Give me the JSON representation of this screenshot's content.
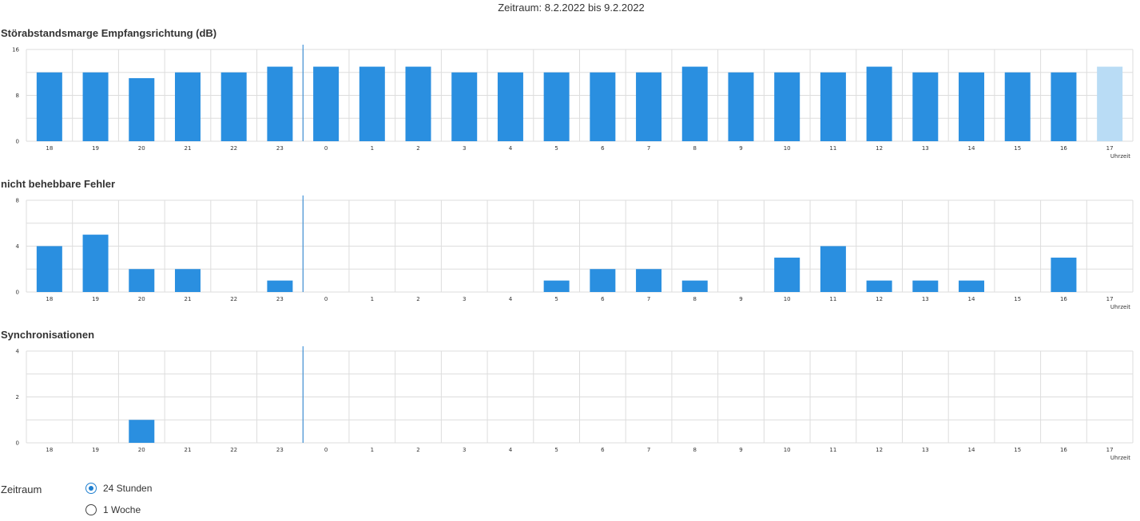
{
  "header": {
    "period": "Zeitraum: 8.2.2022 bis 9.2.2022"
  },
  "axis_unit": "Uhrzeit",
  "colors": {
    "bar": "#2a8fe0",
    "bar_pending": "#b9dcf5",
    "grid": "#dddddd",
    "marker": "#1f7fd0"
  },
  "chart_data": [
    {
      "type": "bar",
      "title": "Störabstandsmarge Empfangsrichtung (dB)",
      "categories": [
        "18",
        "19",
        "20",
        "21",
        "22",
        "23",
        "0",
        "1",
        "2",
        "3",
        "4",
        "5",
        "6",
        "7",
        "8",
        "9",
        "10",
        "11",
        "12",
        "13",
        "14",
        "15",
        "16",
        "17"
      ],
      "values": [
        12,
        12,
        11,
        12,
        12,
        13,
        13,
        13,
        13,
        12,
        12,
        12,
        12,
        12,
        13,
        12,
        12,
        12,
        13,
        12,
        12,
        12,
        12,
        13
      ],
      "highlight_last_value": true,
      "ylim": [
        0,
        16
      ],
      "yticks": [
        0,
        8,
        16
      ],
      "day_marker_at": "0",
      "xlabel": "Uhrzeit",
      "grid": true
    },
    {
      "type": "bar",
      "title": "nicht behebbare Fehler",
      "categories": [
        "18",
        "19",
        "20",
        "21",
        "22",
        "23",
        "0",
        "1",
        "2",
        "3",
        "4",
        "5",
        "6",
        "7",
        "8",
        "9",
        "10",
        "11",
        "12",
        "13",
        "14",
        "15",
        "16",
        "17"
      ],
      "values": [
        4,
        5,
        2,
        2,
        0,
        1,
        0,
        0,
        0,
        0,
        0,
        1,
        2,
        2,
        1,
        0,
        3,
        4,
        1,
        1,
        1,
        0,
        3,
        0
      ],
      "ylim": [
        0,
        8
      ],
      "yticks": [
        0,
        4,
        8
      ],
      "day_marker_at": "0",
      "xlabel": "Uhrzeit",
      "grid": true
    },
    {
      "type": "bar",
      "title": "Synchronisationen",
      "categories": [
        "18",
        "19",
        "20",
        "21",
        "22",
        "23",
        "0",
        "1",
        "2",
        "3",
        "4",
        "5",
        "6",
        "7",
        "8",
        "9",
        "10",
        "11",
        "12",
        "13",
        "14",
        "15",
        "16",
        "17"
      ],
      "values": [
        0,
        0,
        1,
        0,
        0,
        0,
        0,
        0,
        0,
        0,
        0,
        0,
        0,
        0,
        0,
        0,
        0,
        0,
        0,
        0,
        0,
        0,
        0,
        0
      ],
      "ylim": [
        0,
        4
      ],
      "yticks": [
        0,
        2,
        4
      ],
      "day_marker_at": "0",
      "xlabel": "Uhrzeit",
      "grid": true
    }
  ],
  "controls": {
    "label": "Zeitraum",
    "options": [
      {
        "label": "24 Stunden",
        "selected": true
      },
      {
        "label": "1 Woche",
        "selected": false
      }
    ]
  }
}
